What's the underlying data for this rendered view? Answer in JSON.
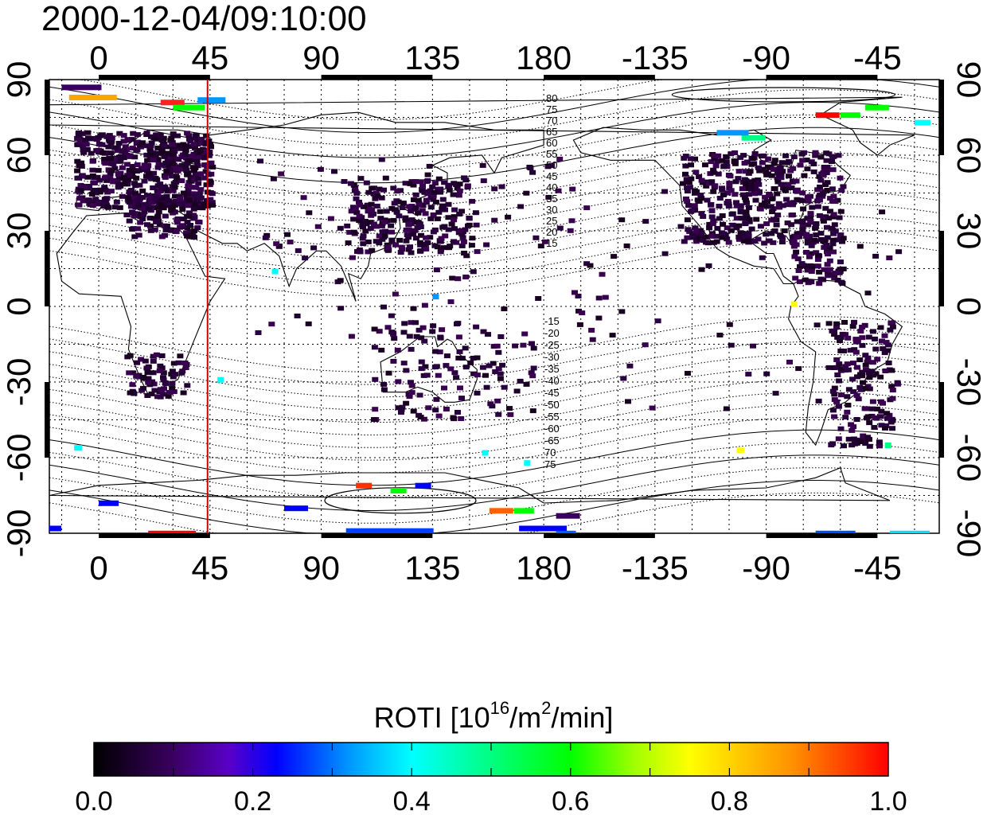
{
  "title": "2000-12-04/09:10:00",
  "map": {
    "lon_ticks_top": [
      "0",
      "45",
      "90",
      "135",
      "180",
      "-135",
      "-90",
      "-45"
    ],
    "lon_ticks_bottom": [
      "0",
      "45",
      "90",
      "135",
      "180",
      "-135",
      "-90",
      "-45"
    ],
    "lat_ticks_left": [
      "90",
      "60",
      "30",
      "0",
      "-30",
      "-60",
      "-90"
    ],
    "lat_ticks_right": [
      "90",
      "60",
      "30",
      "0",
      "-30",
      "-60",
      "-90"
    ],
    "lon_range": [
      -20,
      340
    ],
    "lat_range": [
      -90,
      90
    ],
    "terminator_longitude": 44,
    "terminator_color": "#cc0000",
    "magnetic_lat_labels_north": [
      "80",
      "75",
      "70",
      "65",
      "60",
      "55",
      "50",
      "45",
      "40",
      "35",
      "30",
      "25",
      "20",
      "15"
    ],
    "magnetic_lat_labels_south": [
      "-15",
      "-20",
      "-25",
      "-30",
      "-35",
      "-40",
      "-45",
      "-50",
      "-55",
      "-60",
      "-65",
      "70",
      "75"
    ]
  },
  "colorbar": {
    "title_prefix": "ROTI  [10",
    "title_exp1": "16",
    "title_mid": "/m",
    "title_exp2": "2",
    "title_suffix": "/min]",
    "ticks": [
      "0.0",
      "0.2",
      "0.4",
      "0.6",
      "0.8",
      "1.0"
    ],
    "range": [
      0.0,
      1.0
    ],
    "colors": [
      "#000000",
      "#3a0060",
      "#5a00c8",
      "#0000ff",
      "#0096ff",
      "#00ffff",
      "#00ff80",
      "#00ff00",
      "#a0ff00",
      "#ffff00",
      "#ff9000",
      "#ff0000"
    ]
  }
}
